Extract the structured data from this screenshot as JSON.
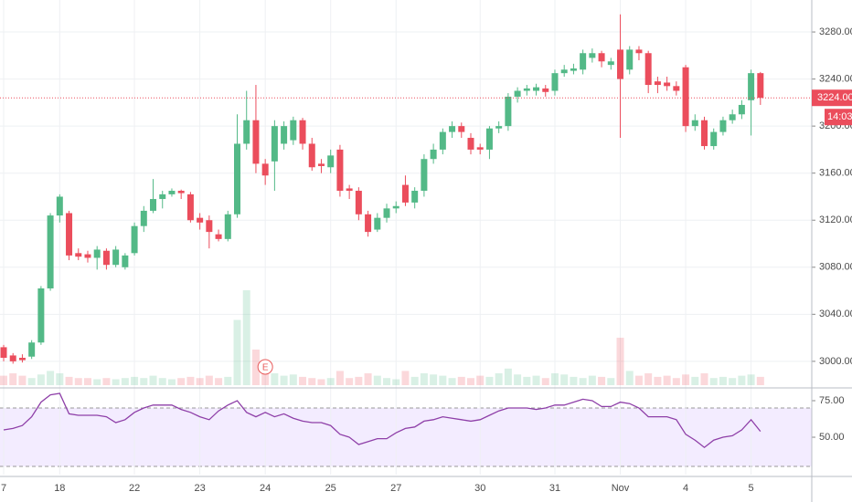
{
  "chart_data": {
    "type": "candlestick",
    "categories": [
      "7",
      null,
      null,
      null,
      null,
      null,
      "18",
      null,
      null,
      null,
      null,
      null,
      null,
      null,
      "22",
      null,
      null,
      null,
      null,
      null,
      null,
      "23",
      null,
      null,
      null,
      null,
      null,
      null,
      "24",
      null,
      null,
      null,
      null,
      null,
      null,
      "25",
      null,
      null,
      null,
      null,
      null,
      null,
      "27",
      null,
      null,
      null,
      null,
      null,
      null,
      null,
      null,
      "30",
      null,
      null,
      null,
      null,
      null,
      null,
      null,
      "31",
      null,
      null,
      null,
      null,
      null,
      null,
      "Nov",
      null,
      null,
      null,
      null,
      null,
      null,
      "4",
      null,
      null,
      null,
      null,
      null,
      null,
      "5",
      null
    ],
    "open": [
      3012,
      3005,
      3003,
      3004,
      3016,
      3062,
      3124,
      3126,
      3092,
      3091,
      3088,
      3094,
      3082,
      3080,
      3092,
      3115,
      3128,
      3138,
      3142,
      3145,
      3142,
      3122,
      3120,
      3108,
      3104,
      3125,
      3185,
      3205,
      3168,
      3170,
      3185,
      3188,
      3205,
      3185,
      3168,
      3165,
      3180,
      3147,
      3145,
      3125,
      3112,
      3122,
      3130,
      3150,
      3135,
      3145,
      3172,
      3180,
      3195,
      3200,
      3190,
      3182,
      3180,
      3198,
      3200,
      3225,
      3230,
      3230,
      3232,
      3230,
      3245,
      3247,
      3248,
      3258,
      3262,
      3252,
      3265,
      3248,
      3265,
      3262,
      3238,
      3237,
      3234,
      3250,
      3200,
      3205,
      3183,
      3195,
      3205,
      3210,
      3222,
      3245
    ],
    "high": [
      3014,
      3007,
      3006,
      3018,
      3064,
      3126,
      3142,
      3128,
      3096,
      3094,
      3098,
      3096,
      3098,
      3092,
      3118,
      3132,
      3155,
      3145,
      3147,
      3146,
      3144,
      3126,
      3124,
      3112,
      3128,
      3210,
      3230,
      3235,
      3172,
      3205,
      3204,
      3208,
      3207,
      3190,
      3172,
      3180,
      3184,
      3150,
      3148,
      3128,
      3126,
      3134,
      3136,
      3158,
      3148,
      3176,
      3185,
      3198,
      3204,
      3203,
      3194,
      3185,
      3200,
      3204,
      3228,
      3233,
      3235,
      3236,
      3235,
      3248,
      3252,
      3253,
      3265,
      3266,
      3264,
      3258,
      3295,
      3268,
      3268,
      3264,
      3242,
      3242,
      3238,
      3252,
      3210,
      3208,
      3198,
      3208,
      3214,
      3222,
      3248,
      3246
    ],
    "low": [
      3000,
      2998,
      2999,
      3002,
      3014,
      3060,
      3118,
      3086,
      3086,
      3084,
      3078,
      3078,
      3080,
      3078,
      3090,
      3110,
      3126,
      3130,
      3140,
      3138,
      3118,
      3112,
      3096,
      3102,
      3102,
      3122,
      3180,
      3160,
      3150,
      3145,
      3180,
      3184,
      3180,
      3162,
      3160,
      3160,
      3140,
      3138,
      3120,
      3106,
      3110,
      3118,
      3126,
      3132,
      3130,
      3140,
      3168,
      3176,
      3190,
      3190,
      3176,
      3176,
      3172,
      3194,
      3196,
      3220,
      3226,
      3226,
      3225,
      3226,
      3242,
      3244,
      3244,
      3254,
      3250,
      3248,
      3190,
      3244,
      3256,
      3228,
      3228,
      3230,
      3226,
      3195,
      3196,
      3180,
      3180,
      3192,
      3202,
      3206,
      3192,
      3218
    ],
    "close": [
      3003,
      3000,
      3001,
      3016,
      3062,
      3124,
      3140,
      3090,
      3089,
      3088,
      3095,
      3082,
      3095,
      3090,
      3115,
      3128,
      3138,
      3142,
      3145,
      3143,
      3120,
      3118,
      3110,
      3104,
      3125,
      3185,
      3205,
      3168,
      3158,
      3200,
      3200,
      3205,
      3185,
      3165,
      3166,
      3175,
      3145,
      3145,
      3125,
      3110,
      3122,
      3130,
      3132,
      3135,
      3145,
      3172,
      3180,
      3195,
      3200,
      3195,
      3180,
      3180,
      3198,
      3200,
      3225,
      3230,
      3232,
      3233,
      3229,
      3245,
      3248,
      3249,
      3262,
      3262,
      3255,
      3255,
      3240,
      3265,
      3262,
      3235,
      3235,
      3234,
      3230,
      3200,
      3205,
      3183,
      3195,
      3205,
      3210,
      3218,
      3245,
      3224
    ],
    "volume": [
      8,
      10,
      8,
      6,
      9,
      12,
      10,
      7,
      6,
      6,
      5,
      6,
      5,
      6,
      7,
      6,
      8,
      6,
      5,
      6,
      7,
      6,
      8,
      6,
      7,
      55,
      80,
      30,
      12,
      10,
      8,
      9,
      7,
      6,
      5,
      6,
      12,
      6,
      7,
      10,
      8,
      6,
      5,
      12,
      7,
      10,
      9,
      8,
      6,
      7,
      6,
      8,
      7,
      10,
      14,
      9,
      7,
      8,
      6,
      10,
      9,
      7,
      6,
      8,
      7,
      6,
      40,
      12,
      8,
      10,
      7,
      8,
      6,
      9,
      7,
      10,
      6,
      7,
      6,
      8,
      9,
      7
    ],
    "rsi": [
      55,
      56,
      58,
      64,
      74,
      79,
      80,
      66,
      65,
      65,
      65,
      64,
      60,
      62,
      67,
      70,
      72,
      72,
      72,
      69,
      67,
      64,
      62,
      68,
      72,
      75,
      67,
      64,
      67,
      64,
      66,
      63,
      61,
      60,
      60,
      58,
      52,
      50,
      45,
      47,
      49,
      49,
      53,
      56,
      57,
      61,
      62,
      64,
      63,
      62,
      61,
      62,
      65,
      68,
      70,
      70,
      70,
      69,
      70,
      72,
      72,
      74,
      76,
      75,
      71,
      71,
      74,
      73,
      70,
      64,
      64,
      64,
      62,
      52,
      48,
      43,
      48,
      50,
      51,
      55,
      62,
      54
    ],
    "ylim": [
      2977.4,
      3307.2
    ],
    "yticks": [
      {
        "value": 3000,
        "label": "3000.00"
      },
      {
        "value": 3040,
        "label": "3040.00"
      },
      {
        "value": 3080,
        "label": "3080.00"
      },
      {
        "value": 3120,
        "label": "3120.00"
      },
      {
        "value": 3160,
        "label": "3160.00"
      },
      {
        "value": 3200,
        "label": "3200.00"
      },
      {
        "value": 3240,
        "label": "3240.00"
      },
      {
        "value": 3280,
        "label": "3280.00"
      }
    ],
    "volume_lim": [
      0,
      327
    ],
    "rsi_ylim": [
      24.4,
      83.75
    ],
    "rsi_yticks": [
      {
        "value": 50,
        "label": "50.00"
      },
      {
        "value": 75,
        "label": "75.00"
      }
    ],
    "rsi_bands": [
      30,
      70
    ],
    "last_price": {
      "value": 3224,
      "label": "3224.00"
    },
    "countdown": "14:03",
    "earnings_marker": "E",
    "up_color": "#53b987",
    "down_color": "#eb4d5c",
    "rsi_color": "#8e3fa8",
    "grid": true
  }
}
